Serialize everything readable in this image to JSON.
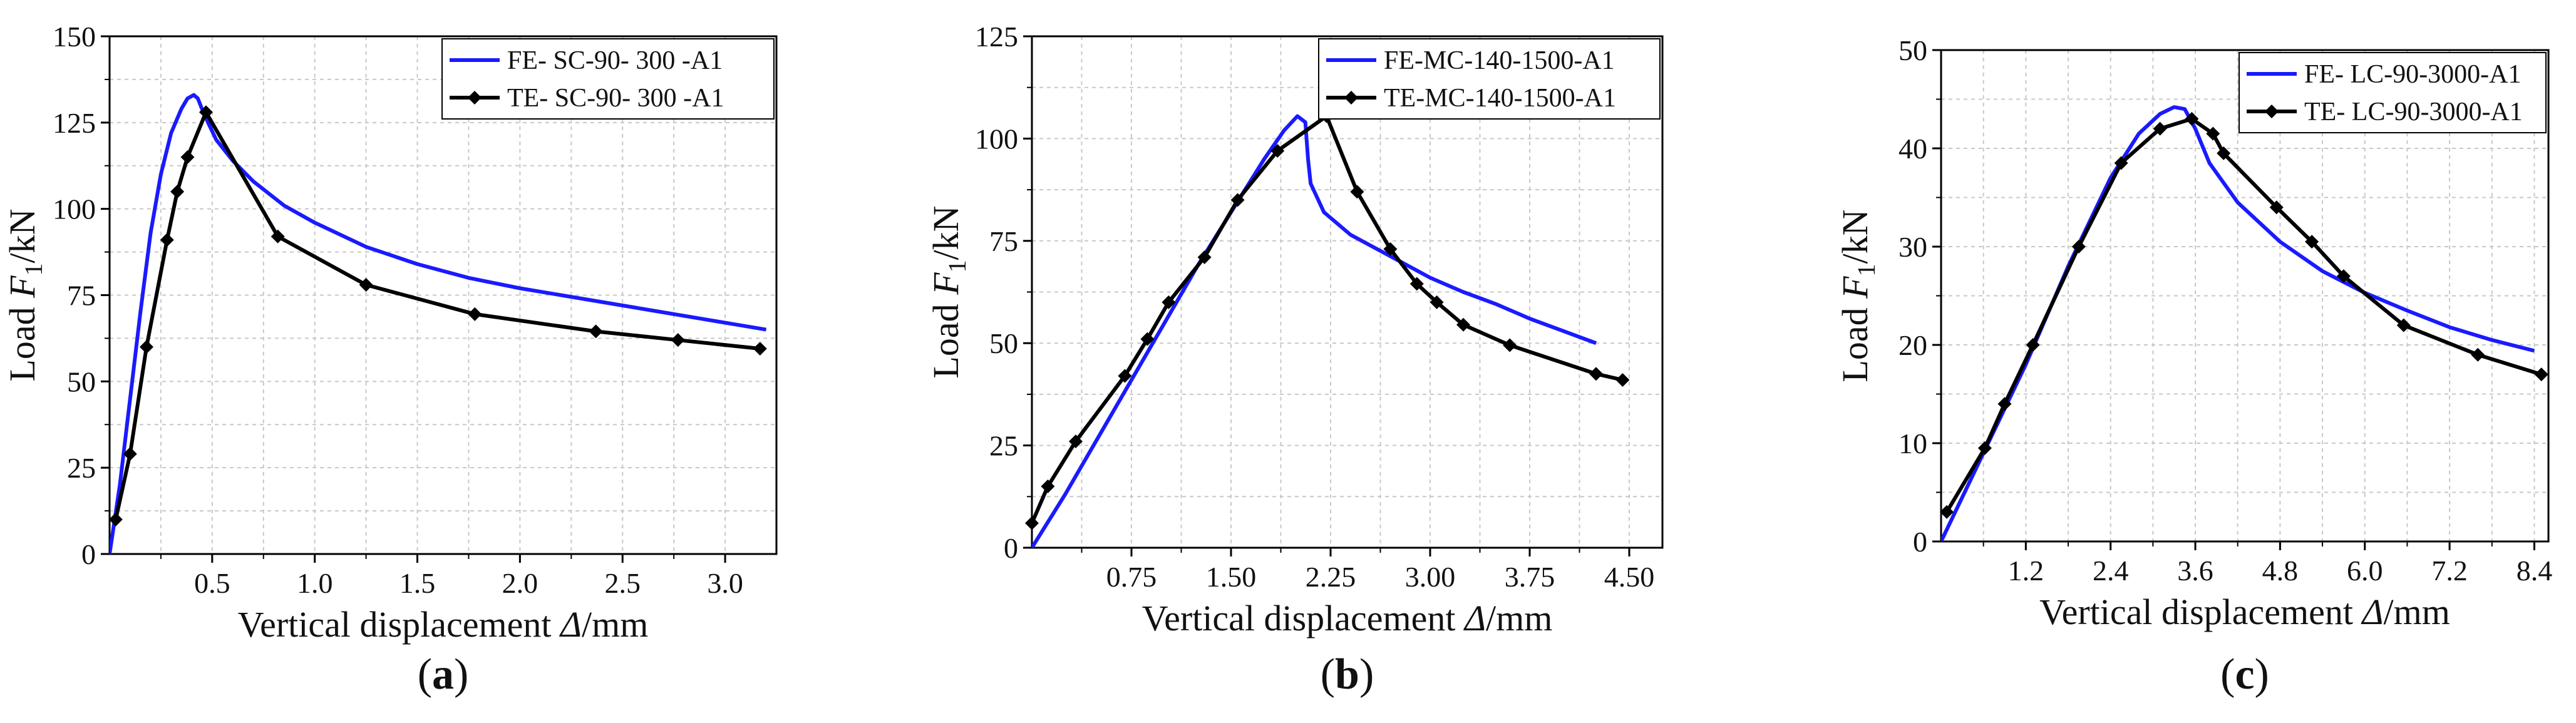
{
  "figure": {
    "panel_labels": [
      {
        "open": "(",
        "letter": "a",
        "close": ")"
      },
      {
        "open": "(",
        "letter": "b",
        "close": ")"
      },
      {
        "open": "(",
        "letter": "c",
        "close": ")"
      }
    ],
    "colors": {
      "fe": "#1a1aff",
      "te": "#000000",
      "grid": "#c8c8c8",
      "axis": "#000000"
    }
  },
  "chart_data": [
    {
      "type": "line",
      "ylabel": {
        "prefix": "Load ",
        "var": "F",
        "sub": "1",
        "suffix": "/kN"
      },
      "xlabel": {
        "prefix": "Vertical displacement ",
        "var": "Δ",
        "suffix": "/mm"
      },
      "xlim": [
        0,
        3.25
      ],
      "ylim": [
        0,
        150
      ],
      "xticks": [
        0.5,
        1.0,
        1.5,
        2.0,
        2.5,
        3.0
      ],
      "xtick_labels": [
        "0.5",
        "1.0",
        "1.5",
        "2.0",
        "2.5",
        "3.0"
      ],
      "yticks": [
        0,
        25,
        50,
        75,
        100,
        125,
        150
      ],
      "ytick_labels": [
        "0",
        "25",
        "50",
        "75",
        "100",
        "125",
        "150"
      ],
      "grid": true,
      "legend_position": "top-right",
      "series": [
        {
          "name": "FE- SC-90- 300 -A1",
          "role": "fe",
          "markers": false,
          "x": [
            0,
            0.05,
            0.1,
            0.15,
            0.2,
            0.25,
            0.3,
            0.35,
            0.38,
            0.41,
            0.43,
            0.45,
            0.48,
            0.52,
            0.6,
            0.7,
            0.85,
            1.0,
            1.25,
            1.5,
            1.75,
            2.0,
            2.5,
            3.0,
            3.2
          ],
          "y": [
            0,
            20,
            45,
            70,
            93,
            110,
            122,
            129,
            132,
            133,
            132,
            129,
            125,
            120,
            114,
            108,
            101,
            96,
            89,
            84,
            80,
            77,
            72,
            67,
            65
          ]
        },
        {
          "name": "TE- SC-90- 300 -A1",
          "role": "te",
          "markers": true,
          "x": [
            0.03,
            0.1,
            0.18,
            0.28,
            0.33,
            0.38,
            0.47,
            0.82,
            1.25,
            1.78,
            2.37,
            2.77,
            3.17
          ],
          "y": [
            10,
            29,
            60,
            91,
            105,
            115,
            128,
            92,
            78,
            69.5,
            64.5,
            62,
            59.5
          ]
        }
      ]
    },
    {
      "type": "line",
      "ylabel": {
        "prefix": "Load ",
        "var": "F",
        "sub": "1",
        "suffix": "/kN"
      },
      "xlabel": {
        "prefix": "Vertical displacement ",
        "var": "Δ",
        "suffix": "/mm"
      },
      "xlim": [
        0,
        4.75
      ],
      "ylim": [
        0,
        125
      ],
      "xticks": [
        0.75,
        1.5,
        2.25,
        3.0,
        3.75,
        4.5
      ],
      "xtick_labels": [
        "0.75",
        "1.50",
        "2.25",
        "3.00",
        "3.75",
        "4.50"
      ],
      "yticks": [
        0,
        25,
        50,
        75,
        100,
        125
      ],
      "ytick_labels": [
        "0",
        "25",
        "50",
        "75",
        "100",
        "125"
      ],
      "grid": true,
      "legend_position": "top-right",
      "series": [
        {
          "name": "FE-MC-140-1500-A1",
          "role": "fe",
          "markers": false,
          "x": [
            0,
            0.25,
            0.5,
            0.75,
            1.0,
            1.25,
            1.5,
            1.75,
            1.9,
            2.0,
            2.06,
            2.08,
            2.1,
            2.2,
            2.4,
            2.6,
            2.8,
            3.0,
            3.25,
            3.5,
            3.75,
            4.0,
            4.25
          ],
          "y": [
            0,
            13,
            27,
            41,
            55,
            69,
            82,
            95,
            102,
            105.5,
            104,
            95,
            89,
            82,
            76.5,
            73,
            69.5,
            66,
            62.5,
            59.5,
            56,
            53,
            50
          ]
        },
        {
          "name": "TE-MC-140-1500-A1",
          "role": "te",
          "markers": true,
          "x": [
            0,
            0.12,
            0.33,
            0.7,
            0.87,
            1.03,
            1.3,
            1.55,
            1.85,
            2.22,
            2.45,
            2.7,
            2.9,
            3.05,
            3.25,
            3.6,
            4.25,
            4.45
          ],
          "y": [
            6,
            15,
            26,
            42,
            51,
            60,
            71,
            85,
            97,
            105.5,
            87,
            73,
            64.5,
            60,
            54.5,
            49.5,
            42.5,
            41
          ]
        }
      ]
    },
    {
      "type": "line",
      "ylabel": {
        "prefix": "Load ",
        "var": "F",
        "sub": "1",
        "suffix": "/kN"
      },
      "xlabel": {
        "prefix": "Vertical displacement ",
        "var": "Δ",
        "suffix": "/mm"
      },
      "xlim": [
        0,
        8.6
      ],
      "ylim": [
        0,
        50
      ],
      "xticks": [
        1.2,
        2.4,
        3.6,
        4.8,
        6.0,
        7.2,
        8.4
      ],
      "xtick_labels": [
        "1.2",
        "2.4",
        "3.6",
        "4.8",
        "6.0",
        "7.2",
        "8.4"
      ],
      "yticks": [
        0,
        10,
        20,
        30,
        40,
        50
      ],
      "ytick_labels": [
        "0",
        "10",
        "20",
        "30",
        "40",
        "50"
      ],
      "grid": true,
      "legend_position": "top-right",
      "series": [
        {
          "name": "FE- LC-90-3000-A1",
          "role": "fe",
          "markers": false,
          "x": [
            0,
            0.6,
            1.2,
            1.8,
            2.4,
            2.8,
            3.1,
            3.3,
            3.45,
            3.6,
            3.8,
            4.2,
            4.8,
            5.4,
            6.0,
            6.6,
            7.2,
            7.8,
            8.4
          ],
          "y": [
            0,
            9,
            18,
            28,
            37,
            41.5,
            43.5,
            44.2,
            44,
            42,
            38.5,
            34.5,
            30.5,
            27.5,
            25.3,
            23.5,
            21.8,
            20.5,
            19.4
          ]
        },
        {
          "name": "TE- LC-90-3000-A1",
          "role": "te",
          "markers": true,
          "x": [
            0.08,
            0.62,
            0.9,
            1.3,
            1.95,
            2.55,
            3.1,
            3.55,
            3.85,
            4,
            4.75,
            5.25,
            5.7,
            6.55,
            7.6,
            8.5
          ],
          "y": [
            3,
            9.5,
            14,
            20,
            30,
            38.5,
            42,
            43,
            41.5,
            39.5,
            34,
            30.5,
            27,
            22,
            19,
            17
          ]
        }
      ]
    }
  ]
}
